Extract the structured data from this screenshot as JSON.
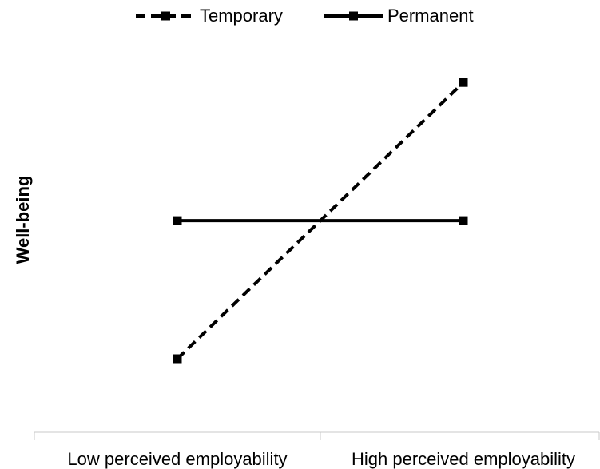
{
  "chart_data": {
    "type": "line",
    "categories": [
      "Low perceived employability",
      "High perceived employability"
    ],
    "ylabel": "Well-being",
    "ylim": [
      0,
      5
    ],
    "legend": "top",
    "series": [
      {
        "name": "Temporary",
        "color": "#000000",
        "dash": true,
        "values": [
          1,
          4.8
        ]
      },
      {
        "name": "Permanent",
        "color": "#000000",
        "dash": false,
        "values": [
          2.9,
          2.9
        ]
      }
    ]
  }
}
